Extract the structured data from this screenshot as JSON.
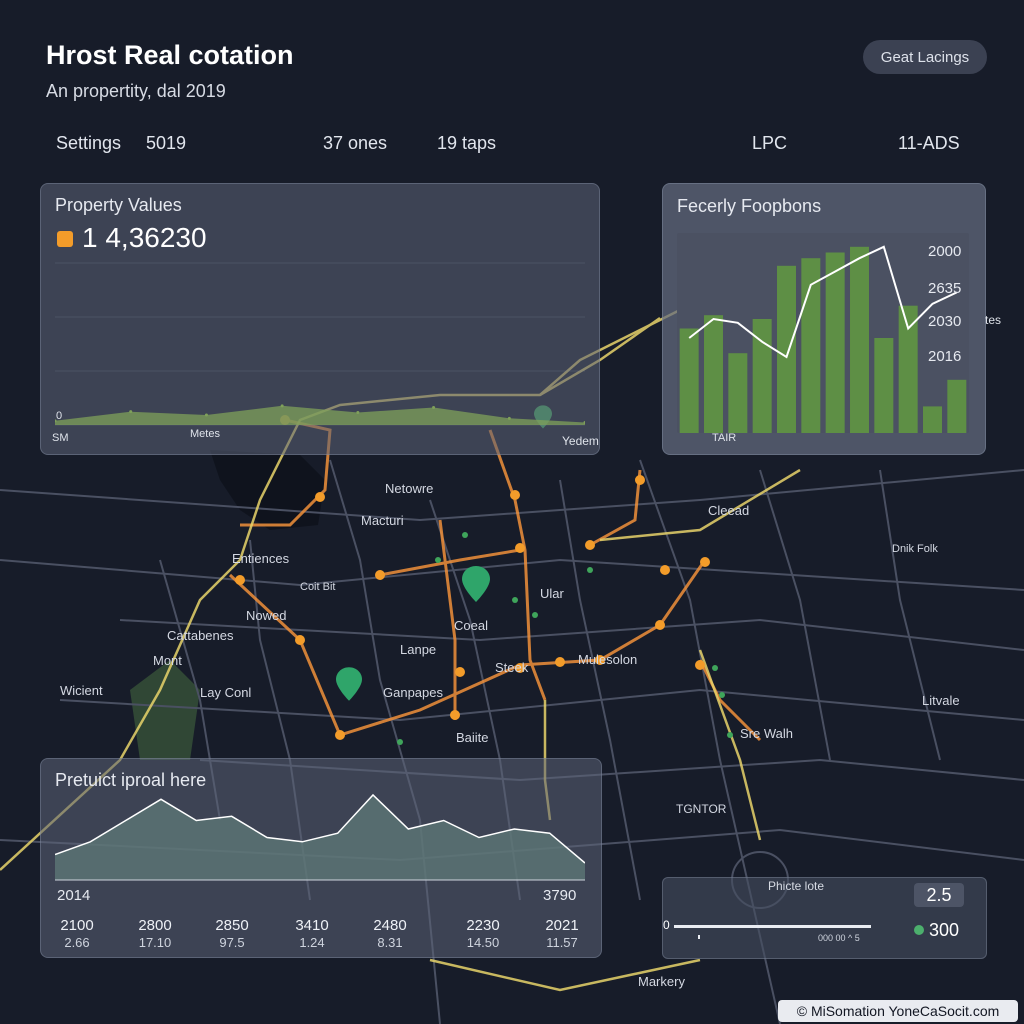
{
  "header": {
    "title": "Hrost Real cotation",
    "subtitle": "An propertity, dal 2019",
    "action_button": "Geat Lacings"
  },
  "stats": {
    "settings_label": "Settings",
    "year": "5019",
    "ones": "37 ones",
    "taps": "19 taps",
    "lpc": "LPC",
    "ads": "11-ADS"
  },
  "property_panel": {
    "title": "Property Values",
    "value": "1 4,36230",
    "axis_zero": "0",
    "axis_left": "SM",
    "axis_mid": "Metes",
    "axis_right": "Yedem",
    "chart_data": {
      "type": "area",
      "title": "Property Values",
      "x": [
        0,
        1,
        2,
        3,
        4,
        5,
        6,
        7
      ],
      "y": [
        0.5,
        1.6,
        1.2,
        2.3,
        1.5,
        2.1,
        0.8,
        0.3
      ],
      "color": "#7fa05a"
    }
  },
  "bar_panel": {
    "title": "Fecerly Foopbons",
    "x_label": "TAIR",
    "right_cut_label": "tes",
    "y_ticks": [
      "2000",
      "2635",
      "2030",
      "2016"
    ],
    "chart_data": {
      "type": "bar",
      "title": "Fecerly Foopbons",
      "values": [
        0.55,
        0.62,
        0.42,
        0.6,
        0.88,
        0.92,
        0.95,
        0.98,
        0.5,
        0.67,
        0.14,
        0.28
      ],
      "trend": [
        0.5,
        0.6,
        0.58,
        0.48,
        0.4,
        0.78,
        0.85,
        0.92,
        0.98,
        0.55,
        0.68,
        0.74
      ],
      "bar_color": "#5e8f45",
      "line_color": "#ffffff"
    }
  },
  "prediction_panel": {
    "title": "Pretuict iproal here",
    "left_value": "2014",
    "right_value": "3790",
    "ticks": [
      "2100",
      "2800",
      "2850",
      "3410",
      "2480",
      "2230",
      "2021"
    ],
    "sub_ticks": [
      "2.66",
      "17.10",
      "97.5",
      "1.24",
      "8.31",
      "14.50",
      "11.57"
    ],
    "chart_data": {
      "type": "area",
      "title": "Pretuict iproal here",
      "x": [
        0,
        1,
        2,
        3,
        4,
        5,
        6,
        7,
        8,
        9,
        10,
        11,
        12,
        13,
        14,
        15
      ],
      "y": [
        0.3,
        0.45,
        0.7,
        0.95,
        0.7,
        0.75,
        0.5,
        0.45,
        0.55,
        1.0,
        0.6,
        0.7,
        0.5,
        0.6,
        0.55,
        0.2
      ],
      "fill_color": "#5f7a78",
      "line_color": "#ffffff"
    }
  },
  "legend_box": {
    "title": "Phicte lote",
    "value_a": "2.5",
    "value_b": "300",
    "left_mark": "0",
    "small_text": "000 00 ^ 5"
  },
  "map_labels": [
    {
      "text": "Netowre"
    },
    {
      "text": "Macturi"
    },
    {
      "text": "Entiences"
    },
    {
      "text": "Coit Bit"
    },
    {
      "text": "Nowed"
    },
    {
      "text": "Cattabenes"
    },
    {
      "text": "Mont"
    },
    {
      "text": "Wicient"
    },
    {
      "text": "Lay Conl"
    },
    {
      "text": "Coeal"
    },
    {
      "text": "Lanpe"
    },
    {
      "text": "Ular"
    },
    {
      "text": "Steek"
    },
    {
      "text": "Mulesolon"
    },
    {
      "text": "Ganpapes"
    },
    {
      "text": "Baiite"
    },
    {
      "text": "Cleead"
    },
    {
      "text": "Dnik Folk"
    },
    {
      "text": "Litvale"
    },
    {
      "text": "Sre Walh"
    },
    {
      "text": "TGNTOR"
    },
    {
      "text": "Markery"
    }
  ],
  "attribution": "© MiSomation YoneCaSocit.com",
  "colors": {
    "background": "#161b28",
    "road_orange": "#f0903a",
    "road_yellow": "#e8d36a",
    "park_green": "#3c5a3a",
    "pin_green": "#2fa56a"
  }
}
